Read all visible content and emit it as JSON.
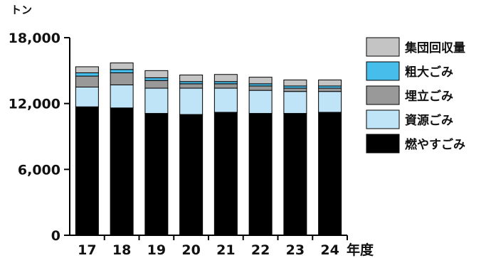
{
  "chart_data": {
    "type": "bar",
    "stacked": true,
    "ylabel": "トン",
    "xlabel": "年度",
    "ylim": [
      0,
      18000
    ],
    "yticks": [
      0,
      6000,
      12000,
      18000
    ],
    "ytick_labels": [
      "0",
      "6,000",
      "12,000",
      "18,000"
    ],
    "categories": [
      "17",
      "18",
      "19",
      "20",
      "21",
      "22",
      "23",
      "24"
    ],
    "grid": false,
    "legend_position": "right",
    "series": [
      {
        "name": "燃やすごみ",
        "color": "#000000",
        "values": [
          11700,
          11600,
          11100,
          11000,
          11200,
          11100,
          11100,
          11200
        ]
      },
      {
        "name": "資源ごみ",
        "color": "#bfe3f7",
        "values": [
          1800,
          2100,
          2300,
          2400,
          2200,
          2100,
          2000,
          1900
        ]
      },
      {
        "name": "埋立ごみ",
        "color": "#999999",
        "values": [
          1000,
          1100,
          700,
          400,
          400,
          400,
          300,
          300
        ]
      },
      {
        "name": "粗大ごみ",
        "color": "#46bdea",
        "values": [
          300,
          300,
          250,
          200,
          200,
          200,
          200,
          200
        ]
      },
      {
        "name": "集団回収量",
        "color": "#c4c4c4",
        "values": [
          550,
          600,
          650,
          600,
          650,
          600,
          550,
          550
        ]
      }
    ],
    "legend_order": [
      "集団回収量",
      "粗大ごみ",
      "埋立ごみ",
      "資源ごみ",
      "燃やすごみ"
    ]
  }
}
